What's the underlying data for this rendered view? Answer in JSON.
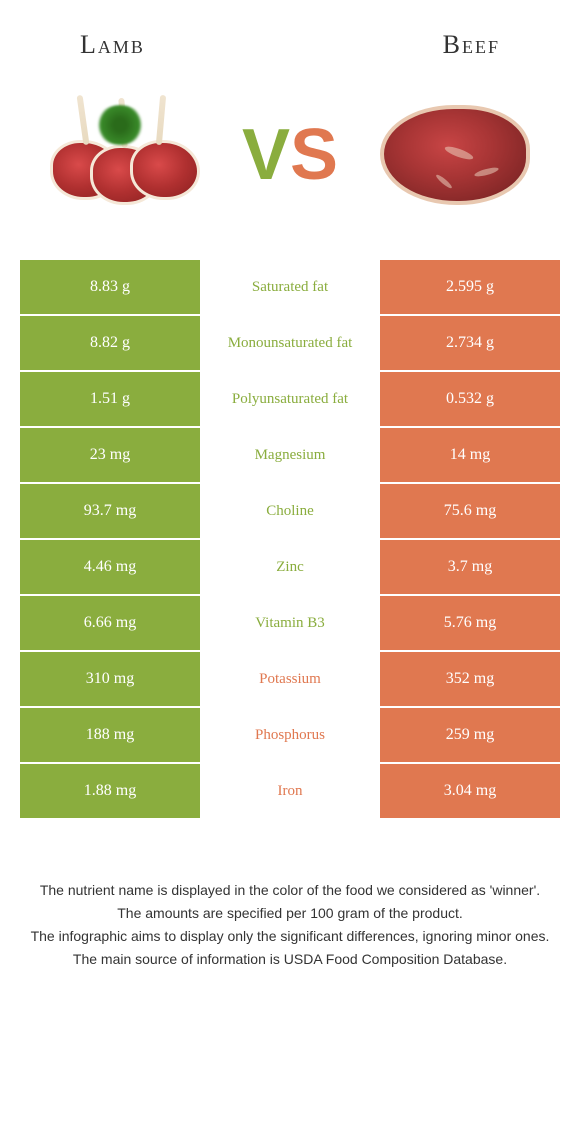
{
  "header": {
    "left": "Lamb",
    "right": "Beef"
  },
  "vs": {
    "v": "V",
    "s": "S"
  },
  "colors": {
    "lamb_bg": "#8aad3e",
    "beef_bg": "#e07850",
    "lamb_text": "#8aad3e",
    "beef_text": "#e07850"
  },
  "rows": [
    {
      "left": "8.83 g",
      "label": "Saturated fat",
      "right": "2.595 g",
      "winner": "lamb"
    },
    {
      "left": "8.82 g",
      "label": "Monounsaturated fat",
      "right": "2.734 g",
      "winner": "lamb"
    },
    {
      "left": "1.51 g",
      "label": "Polyunsaturated fat",
      "right": "0.532 g",
      "winner": "lamb"
    },
    {
      "left": "23 mg",
      "label": "Magnesium",
      "right": "14 mg",
      "winner": "lamb"
    },
    {
      "left": "93.7 mg",
      "label": "Choline",
      "right": "75.6 mg",
      "winner": "lamb"
    },
    {
      "left": "4.46 mg",
      "label": "Zinc",
      "right": "3.7 mg",
      "winner": "lamb"
    },
    {
      "left": "6.66 mg",
      "label": "Vitamin B3",
      "right": "5.76 mg",
      "winner": "lamb"
    },
    {
      "left": "310 mg",
      "label": "Potassium",
      "right": "352 mg",
      "winner": "beef"
    },
    {
      "left": "188 mg",
      "label": "Phosphorus",
      "right": "259 mg",
      "winner": "beef"
    },
    {
      "left": "1.88 mg",
      "label": "Iron",
      "right": "3.04 mg",
      "winner": "beef"
    }
  ],
  "footer": {
    "line1": "The nutrient name is displayed in the color of the food we considered as 'winner'.",
    "line2": "The amounts are specified per 100 gram of the product.",
    "line3": "The infographic aims to display only the significant differences, ignoring minor ones.",
    "line4": "The main source of information is USDA Food Composition Database."
  }
}
